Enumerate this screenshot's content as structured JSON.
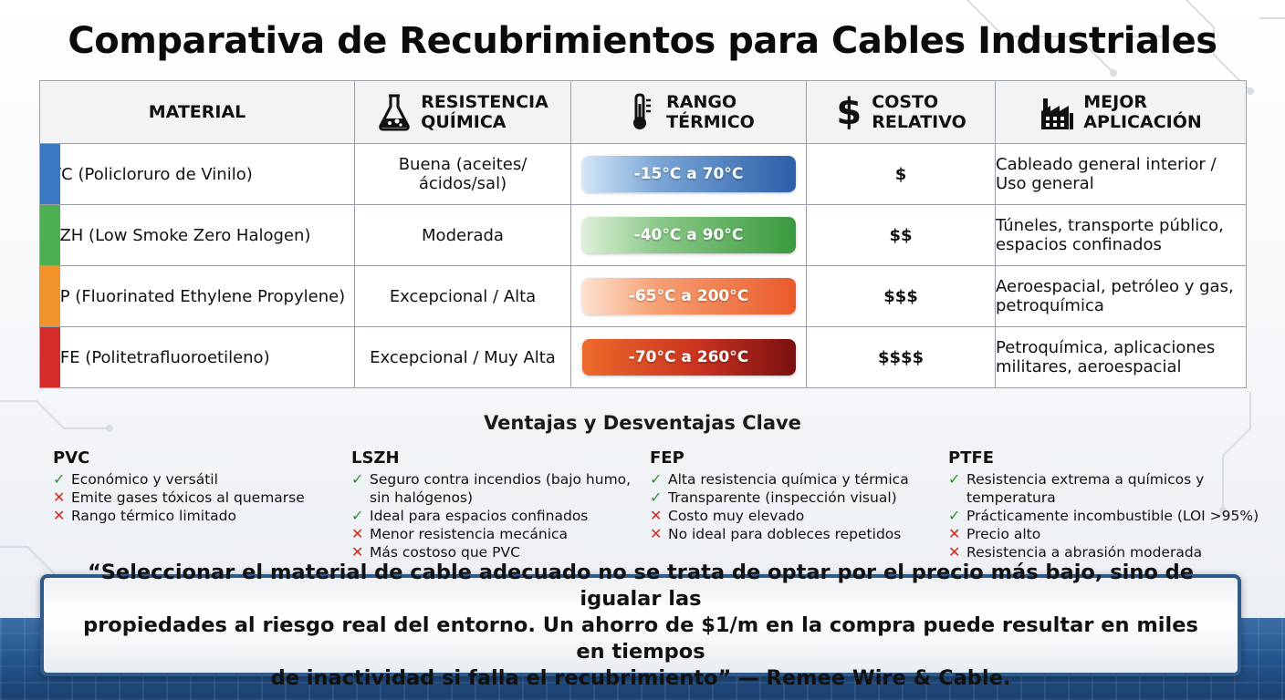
{
  "title": "Comparativa de Recubrimientos para Cables Industriales",
  "headers": {
    "material": "MATERIAL",
    "resistance": [
      "RESISTENCIA",
      "QUÍMICA"
    ],
    "range": [
      "RANGO",
      "TÉRMICO"
    ],
    "cost": [
      "COSTO",
      "RELATIVO"
    ],
    "application": [
      "MEJOR",
      "APLICACIÓN"
    ],
    "cost_symbol": "$"
  },
  "rows": [
    {
      "material": "PVC (Policloruro de Vinilo)",
      "resistance": "Buena (aceites/ácidos/sal)",
      "range": "-15°C a 70°C",
      "cost": "$",
      "application": [
        "Cableado general interior /",
        "Uso general"
      ],
      "stripe": "#3b78c2"
    },
    {
      "material": "LSZH (Low Smoke Zero Halogen)",
      "resistance": "Moderada",
      "range": "-40°C a 90°C",
      "cost": "$$",
      "application": [
        "Túneles, transporte público,",
        "espacios confinados"
      ],
      "stripe": "#4caf50"
    },
    {
      "material": "FEP (Fluorinated Ethylene Propylene)",
      "resistance": "Excepcional / Alta",
      "range": "-65°C a 200°C",
      "cost": "$$$",
      "application": [
        "Aeroespacial, petróleo y gas,",
        "petroquímica"
      ],
      "stripe": "#f0932b"
    },
    {
      "material": "PTFE (Politetrafluoroetileno)",
      "resistance": "Excepcional / Muy Alta",
      "range": "-70°C a 260°C",
      "cost": "$$$$",
      "application": [
        "Petroquímica, aplicaciones",
        "militares, aeroespacial"
      ],
      "stripe": "#d62b2b"
    }
  ],
  "section_title": "Ventajas y Desventajas Clave",
  "pros_cons": [
    {
      "name": "PVC",
      "items": [
        {
          "ok": true,
          "text": "Económico y versátil"
        },
        {
          "ok": false,
          "text": "Emite gases tóxicos al quemarse"
        },
        {
          "ok": false,
          "text": "Rango térmico limitado"
        }
      ]
    },
    {
      "name": "LSZH",
      "items": [
        {
          "ok": true,
          "text": "Seguro contra incendios (bajo humo, sin halógenos)"
        },
        {
          "ok": true,
          "text": "Ideal para espacios confinados"
        },
        {
          "ok": false,
          "text": "Menor resistencia mecánica"
        },
        {
          "ok": false,
          "text": "Más costoso que PVC"
        }
      ]
    },
    {
      "name": "FEP",
      "items": [
        {
          "ok": true,
          "text": "Alta resistencia química y térmica"
        },
        {
          "ok": true,
          "text": "Transparente (inspección visual)"
        },
        {
          "ok": false,
          "text": "Costo muy elevado"
        },
        {
          "ok": false,
          "text": "No ideal para dobleces repetidos"
        }
      ]
    },
    {
      "name": "PTFE",
      "items": [
        {
          "ok": true,
          "text": "Resistencia extrema a químicos y temperatura"
        },
        {
          "ok": true,
          "text": "Prácticamente incombustible (LOI >95%)"
        },
        {
          "ok": false,
          "text": "Precio alto"
        },
        {
          "ok": false,
          "text": "Resistencia a abrasión moderada"
        }
      ]
    }
  ],
  "marks": {
    "ok": "✓",
    "no": "✕"
  },
  "quote": [
    "“Seleccionar el material de cable adecuado no se trata de optar por el precio más bajo, sino de igualar las",
    "propiedades al riesgo real del entorno. Un ahorro de $1/m en la compra puede resultar en miles en tiempos",
    "de inactividad si falla el recubrimiento” — Remee Wire & Cable."
  ],
  "colors": {
    "pvc": "#3b78c2",
    "lszh": "#4caf50",
    "fep": "#f0932b",
    "ptfe": "#d62b2b",
    "frame": "#2f5b8a"
  },
  "icons": {
    "resistance": "flask-icon",
    "range": "thermometer-icon",
    "cost": "dollar-icon",
    "application": "factory-icon"
  }
}
